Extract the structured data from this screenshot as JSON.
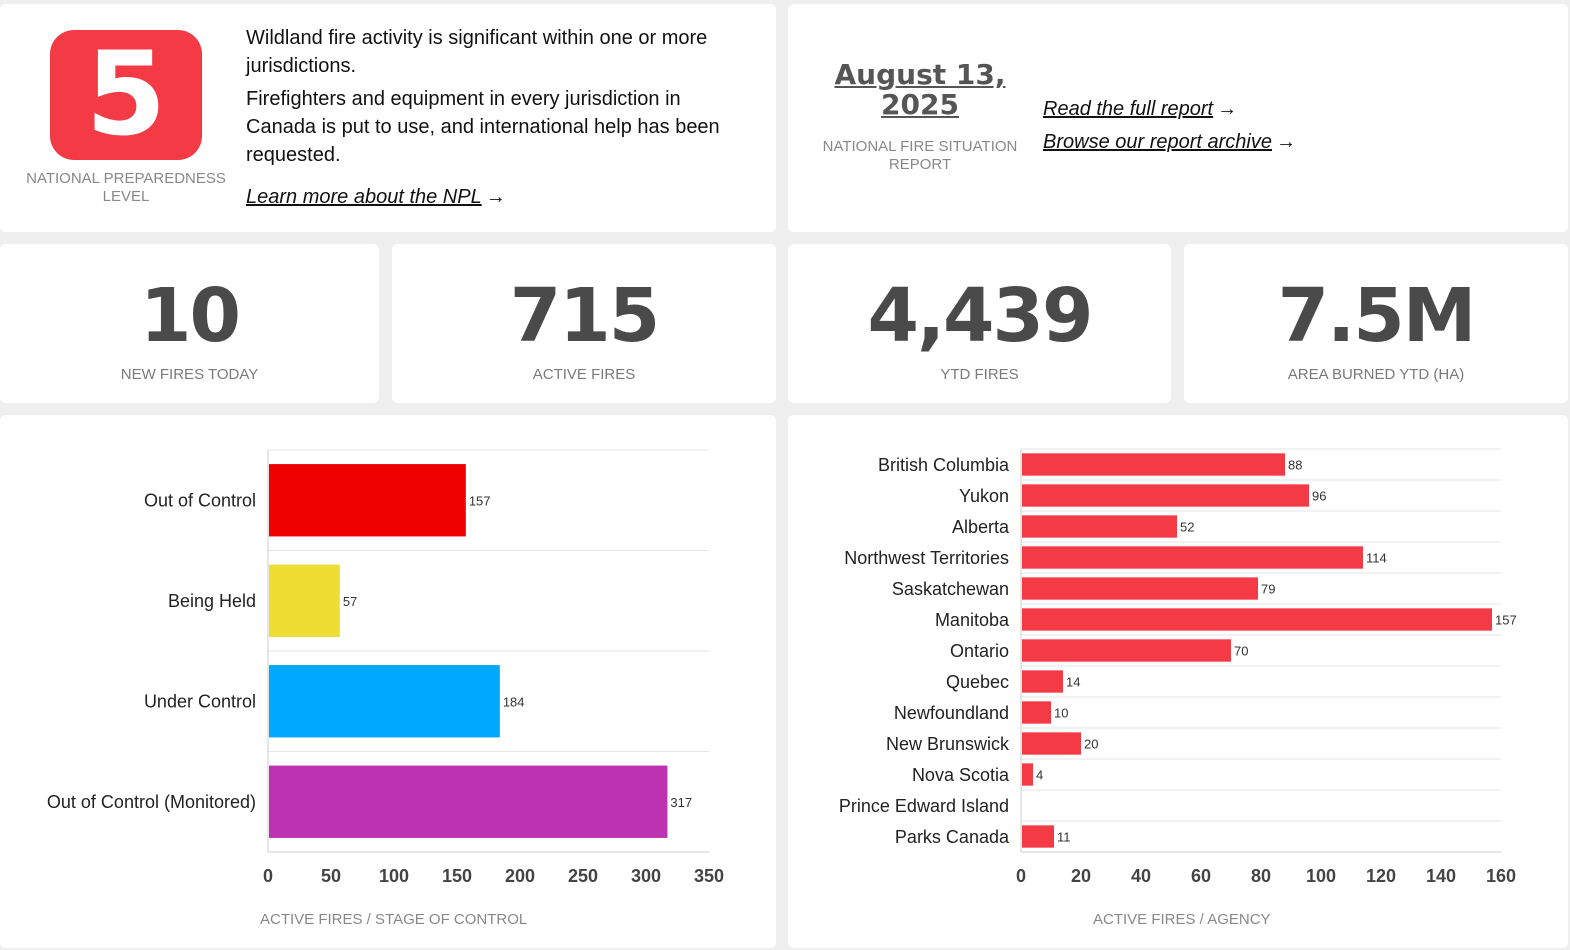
{
  "npl": {
    "level": "5",
    "caption": "NATIONAL PREPAREDNESS LEVEL",
    "paragraph1": "Wildland fire activity is significant within one or more jurisdictions.",
    "paragraph2": "Firefighters and equipment in every jurisdiction in Canada is put to use, and international help has been requested.",
    "link_label": "Learn more about the NPL",
    "badge_color": "#f43a45"
  },
  "report": {
    "date": "August 13, 2025",
    "caption": "NATIONAL FIRE SITUATION REPORT",
    "link_full": "Read the full report",
    "link_archive": "Browse our report archive"
  },
  "stats": [
    {
      "value": "10",
      "label": "NEW FIRES TODAY"
    },
    {
      "value": "715",
      "label": "ACTIVE FIRES"
    },
    {
      "value": "4,439",
      "label": "YTD FIRES"
    },
    {
      "value": "7.5M",
      "label": "AREA BURNED YTD (HA)"
    }
  ],
  "chart_data": [
    {
      "type": "bar",
      "orientation": "horizontal",
      "caption": "ACTIVE FIRES / STAGE OF CONTROL",
      "categories": [
        "Out of Control",
        "Being Held",
        "Under Control",
        "Out of Control (Monitored)"
      ],
      "values": [
        157,
        57,
        184,
        317
      ],
      "colors": [
        "#ee0000",
        "#eede34",
        "#00a8ff",
        "#bb33b0"
      ],
      "xlim": [
        0,
        350
      ],
      "xticks": [
        0,
        50,
        100,
        150,
        200,
        250,
        300,
        350
      ],
      "grid": true,
      "data_labels": true
    },
    {
      "type": "bar",
      "orientation": "horizontal",
      "caption": "ACTIVE FIRES / AGENCY",
      "categories": [
        "British Columbia",
        "Yukon",
        "Alberta",
        "Northwest Territories",
        "Saskatchewan",
        "Manitoba",
        "Ontario",
        "Quebec",
        "Newfoundland",
        "New Brunswick",
        "Nova Scotia",
        "Prince Edward Island",
        "Parks Canada"
      ],
      "values": [
        88,
        96,
        52,
        114,
        79,
        157,
        70,
        14,
        10,
        20,
        4,
        0,
        11
      ],
      "value_labels": [
        "88",
        "96",
        "52",
        "114",
        "79",
        "157",
        "70",
        "14",
        "10",
        "20",
        "4",
        "",
        "11"
      ],
      "color": "#f43a45",
      "xlim": [
        0,
        160
      ],
      "xticks": [
        0,
        20,
        40,
        60,
        80,
        100,
        120,
        140,
        160
      ],
      "grid": true,
      "data_labels": true
    }
  ]
}
